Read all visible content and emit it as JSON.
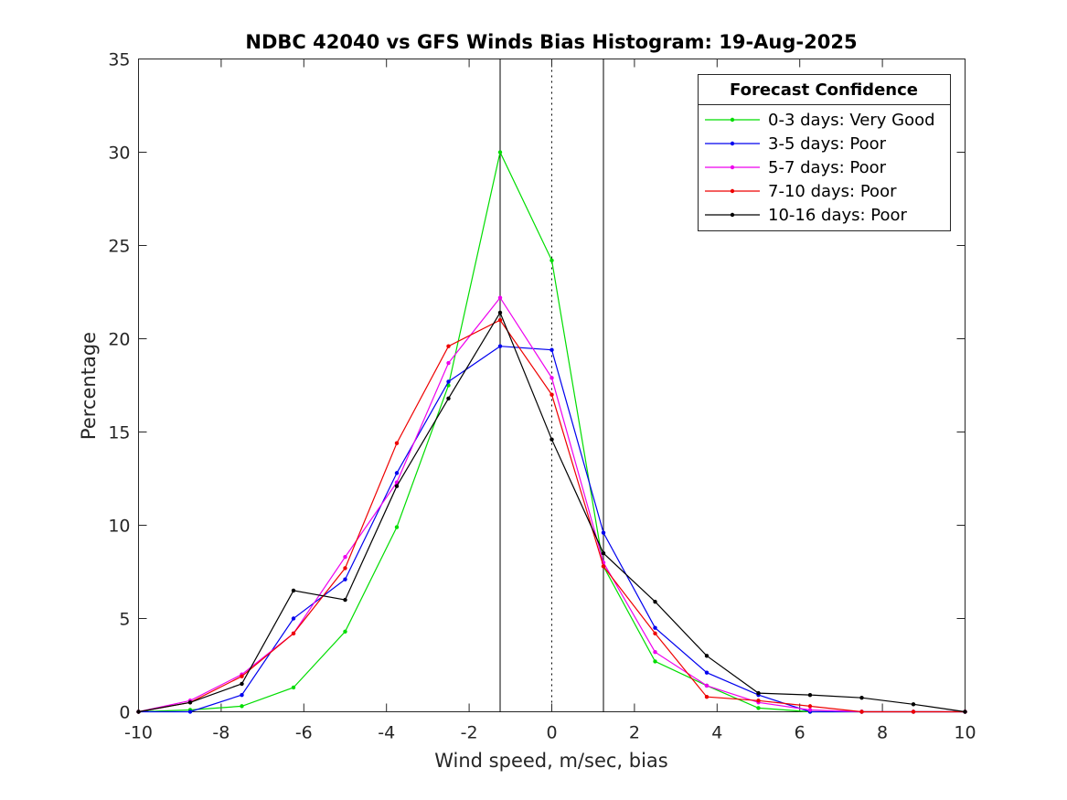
{
  "chart_data": {
    "type": "line",
    "title": "NDBC 42040 vs GFS Winds Bias Histogram: 19-Aug-2025",
    "xlabel": "Wind speed, m/sec, bias",
    "ylabel": "Percentage",
    "xlim": [
      -10,
      10
    ],
    "ylim": [
      0,
      35
    ],
    "xticks": [
      -10,
      -8,
      -6,
      -4,
      -2,
      0,
      2,
      4,
      6,
      8,
      10
    ],
    "yticks": [
      0,
      5,
      10,
      15,
      20,
      25,
      30,
      35
    ],
    "grid": false,
    "reference_lines": [
      {
        "x": -1.25,
        "style": "solid",
        "color": "#000000"
      },
      {
        "x": 0,
        "style": "dotted",
        "color": "#000000"
      },
      {
        "x": 1.25,
        "style": "solid",
        "color": "#000000"
      }
    ],
    "x": [
      -10,
      -8.75,
      -7.5,
      -6.25,
      -5,
      -3.75,
      -2.5,
      -1.25,
      0,
      1.25,
      2.5,
      3.75,
      5,
      6.25,
      7.5,
      8.75,
      10
    ],
    "legend": {
      "title": "Forecast Confidence",
      "position": "top-right"
    },
    "series": [
      {
        "name": "0-3 days: Very Good",
        "color": "#00dd00",
        "values": [
          0,
          0.1,
          0.3,
          1.3,
          4.3,
          9.9,
          17.5,
          30.0,
          24.2,
          7.8,
          2.7,
          1.4,
          0.2,
          0.0,
          0,
          0,
          0
        ]
      },
      {
        "name": "3-5 days: Poor",
        "color": "#0000ee",
        "values": [
          0,
          0.0,
          0.9,
          5.0,
          7.1,
          12.8,
          17.7,
          19.6,
          19.4,
          9.6,
          4.5,
          2.1,
          0.9,
          0.0,
          0,
          0,
          0
        ]
      },
      {
        "name": "5-7 days: Poor",
        "color": "#ee00ee",
        "values": [
          0,
          0.6,
          2.0,
          4.2,
          8.3,
          12.3,
          18.7,
          22.2,
          17.9,
          8.0,
          3.2,
          1.4,
          0.5,
          0.1,
          0,
          0,
          0
        ]
      },
      {
        "name": "7-10 days: Poor",
        "color": "#ee0000",
        "values": [
          0,
          0.5,
          1.9,
          4.2,
          7.7,
          14.4,
          19.6,
          21.0,
          17.0,
          7.8,
          4.2,
          0.8,
          0.6,
          0.3,
          0,
          0,
          0
        ]
      },
      {
        "name": "10-16 days: Poor",
        "color": "#000000",
        "values": [
          0,
          0.5,
          1.5,
          6.5,
          6.0,
          12.1,
          16.8,
          21.4,
          14.6,
          8.5,
          5.9,
          3.0,
          1.0,
          0.9,
          0.75,
          0.4,
          0
        ]
      }
    ]
  }
}
